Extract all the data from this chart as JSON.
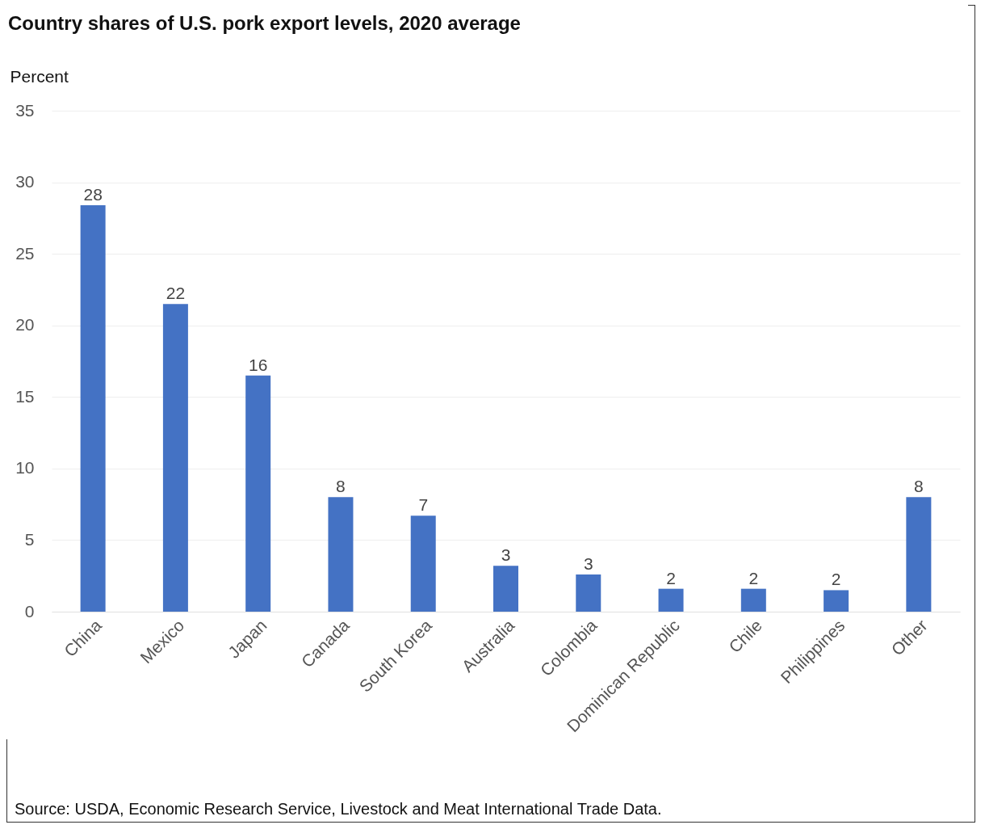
{
  "chart_data": {
    "type": "bar",
    "title": "Country shares of U.S. pork export levels, 2020 average",
    "ylabel": "Percent",
    "categories": [
      "China",
      "Mexico",
      "Japan",
      "Canada",
      "South Korea",
      "Australia",
      "Colombia",
      "Dominican Republic",
      "Chile",
      "Philippines",
      "Other"
    ],
    "values": [
      28.4,
      21.5,
      16.5,
      8,
      6.7,
      3.2,
      2.6,
      1.6,
      1.6,
      1.5,
      8
    ],
    "value_labels": [
      "28",
      "22",
      "16",
      "8",
      "7",
      "3",
      "3",
      "2",
      "2",
      "2",
      "8"
    ],
    "color": "#4472c4",
    "ylim": [
      0,
      35
    ],
    "yticks": [
      0,
      5,
      10,
      15,
      20,
      25,
      30,
      35
    ],
    "grid": "y",
    "annotations": [
      "Source: USDA, Economic Research Service, Livestock and Meat International Trade Data."
    ]
  }
}
